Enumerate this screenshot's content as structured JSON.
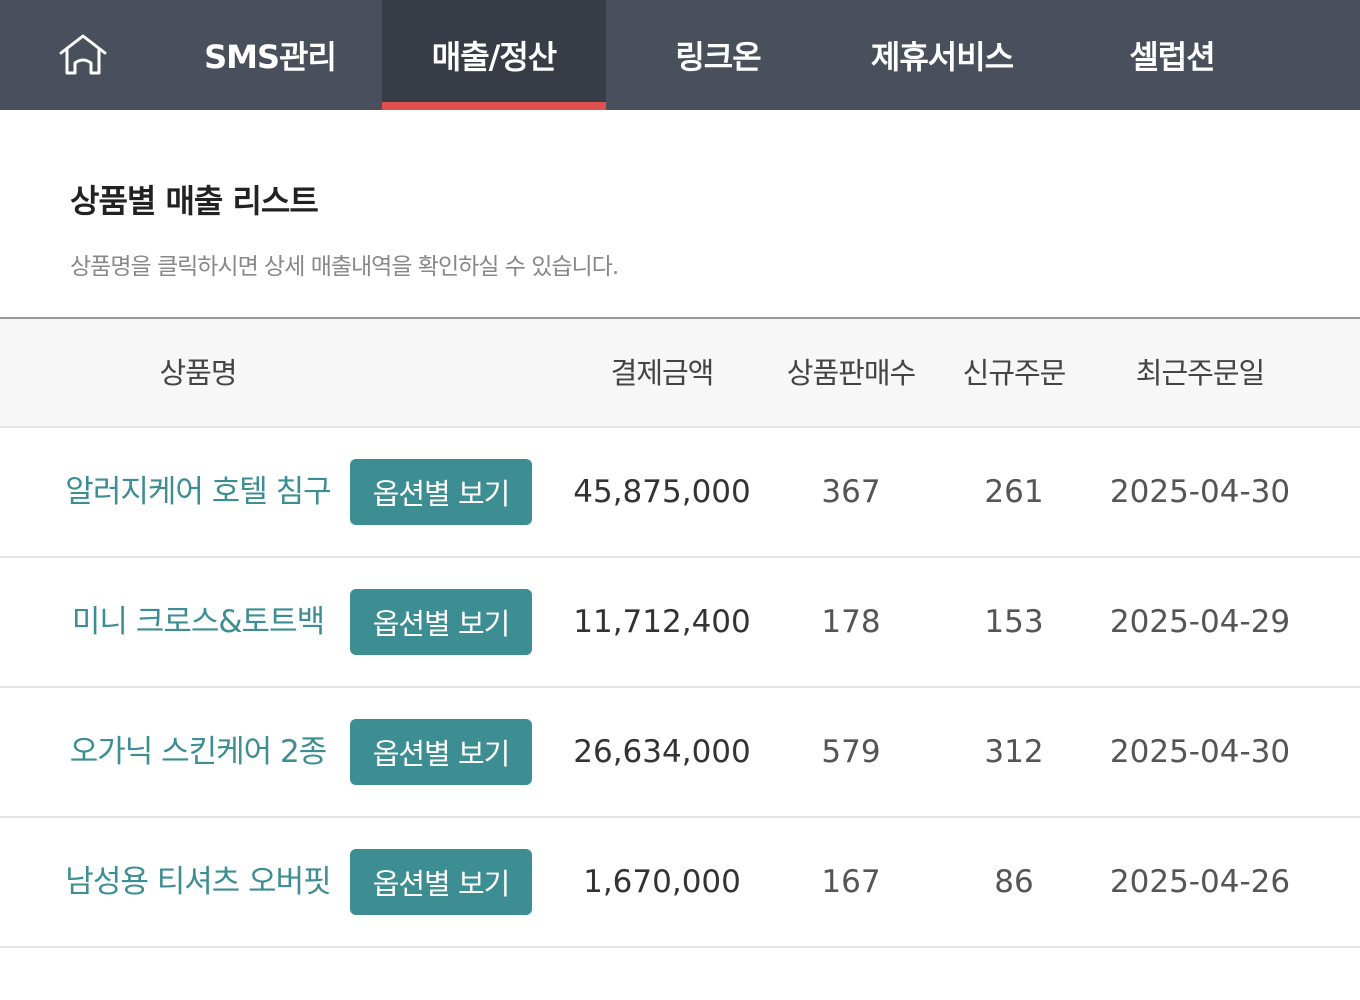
{
  "nav": {
    "items": [
      {
        "label": "SMS관리"
      },
      {
        "label": "매출/정산",
        "active": true
      },
      {
        "label": "링크온"
      },
      {
        "label": "제휴서비스"
      },
      {
        "label": "셀럽션"
      }
    ],
    "active_color": "#e05050"
  },
  "page": {
    "title": "상품별 매출 리스트",
    "subtitle": "상품명을 클릭하시면 상세 매출내역을 확인하실 수 있습니다."
  },
  "table": {
    "headers": [
      "상품명",
      "결제금액",
      "상품판매수",
      "신규주문",
      "최근주문일"
    ],
    "option_button_label": "옵션별 보기",
    "rows": [
      {
        "name": "알러지케어 호텔 침구",
        "amount": "45,875,000",
        "sales": "367",
        "new_orders": "261",
        "last_date": "2025-04-30"
      },
      {
        "name": "미니 크로스&토트백",
        "amount": "11,712,400",
        "sales": "178",
        "new_orders": "153",
        "last_date": "2025-04-29"
      },
      {
        "name": "오가닉 스킨케어 2종",
        "amount": "26,634,000",
        "sales": "579",
        "new_orders": "312",
        "last_date": "2025-04-30"
      },
      {
        "name": "남성용 티셔츠 오버핏",
        "amount": "1,670,000",
        "sales": "167",
        "new_orders": "86",
        "last_date": "2025-04-26"
      }
    ]
  },
  "colors": {
    "nav_bg": "#4a4f5c",
    "accent": "#3d8e92"
  }
}
